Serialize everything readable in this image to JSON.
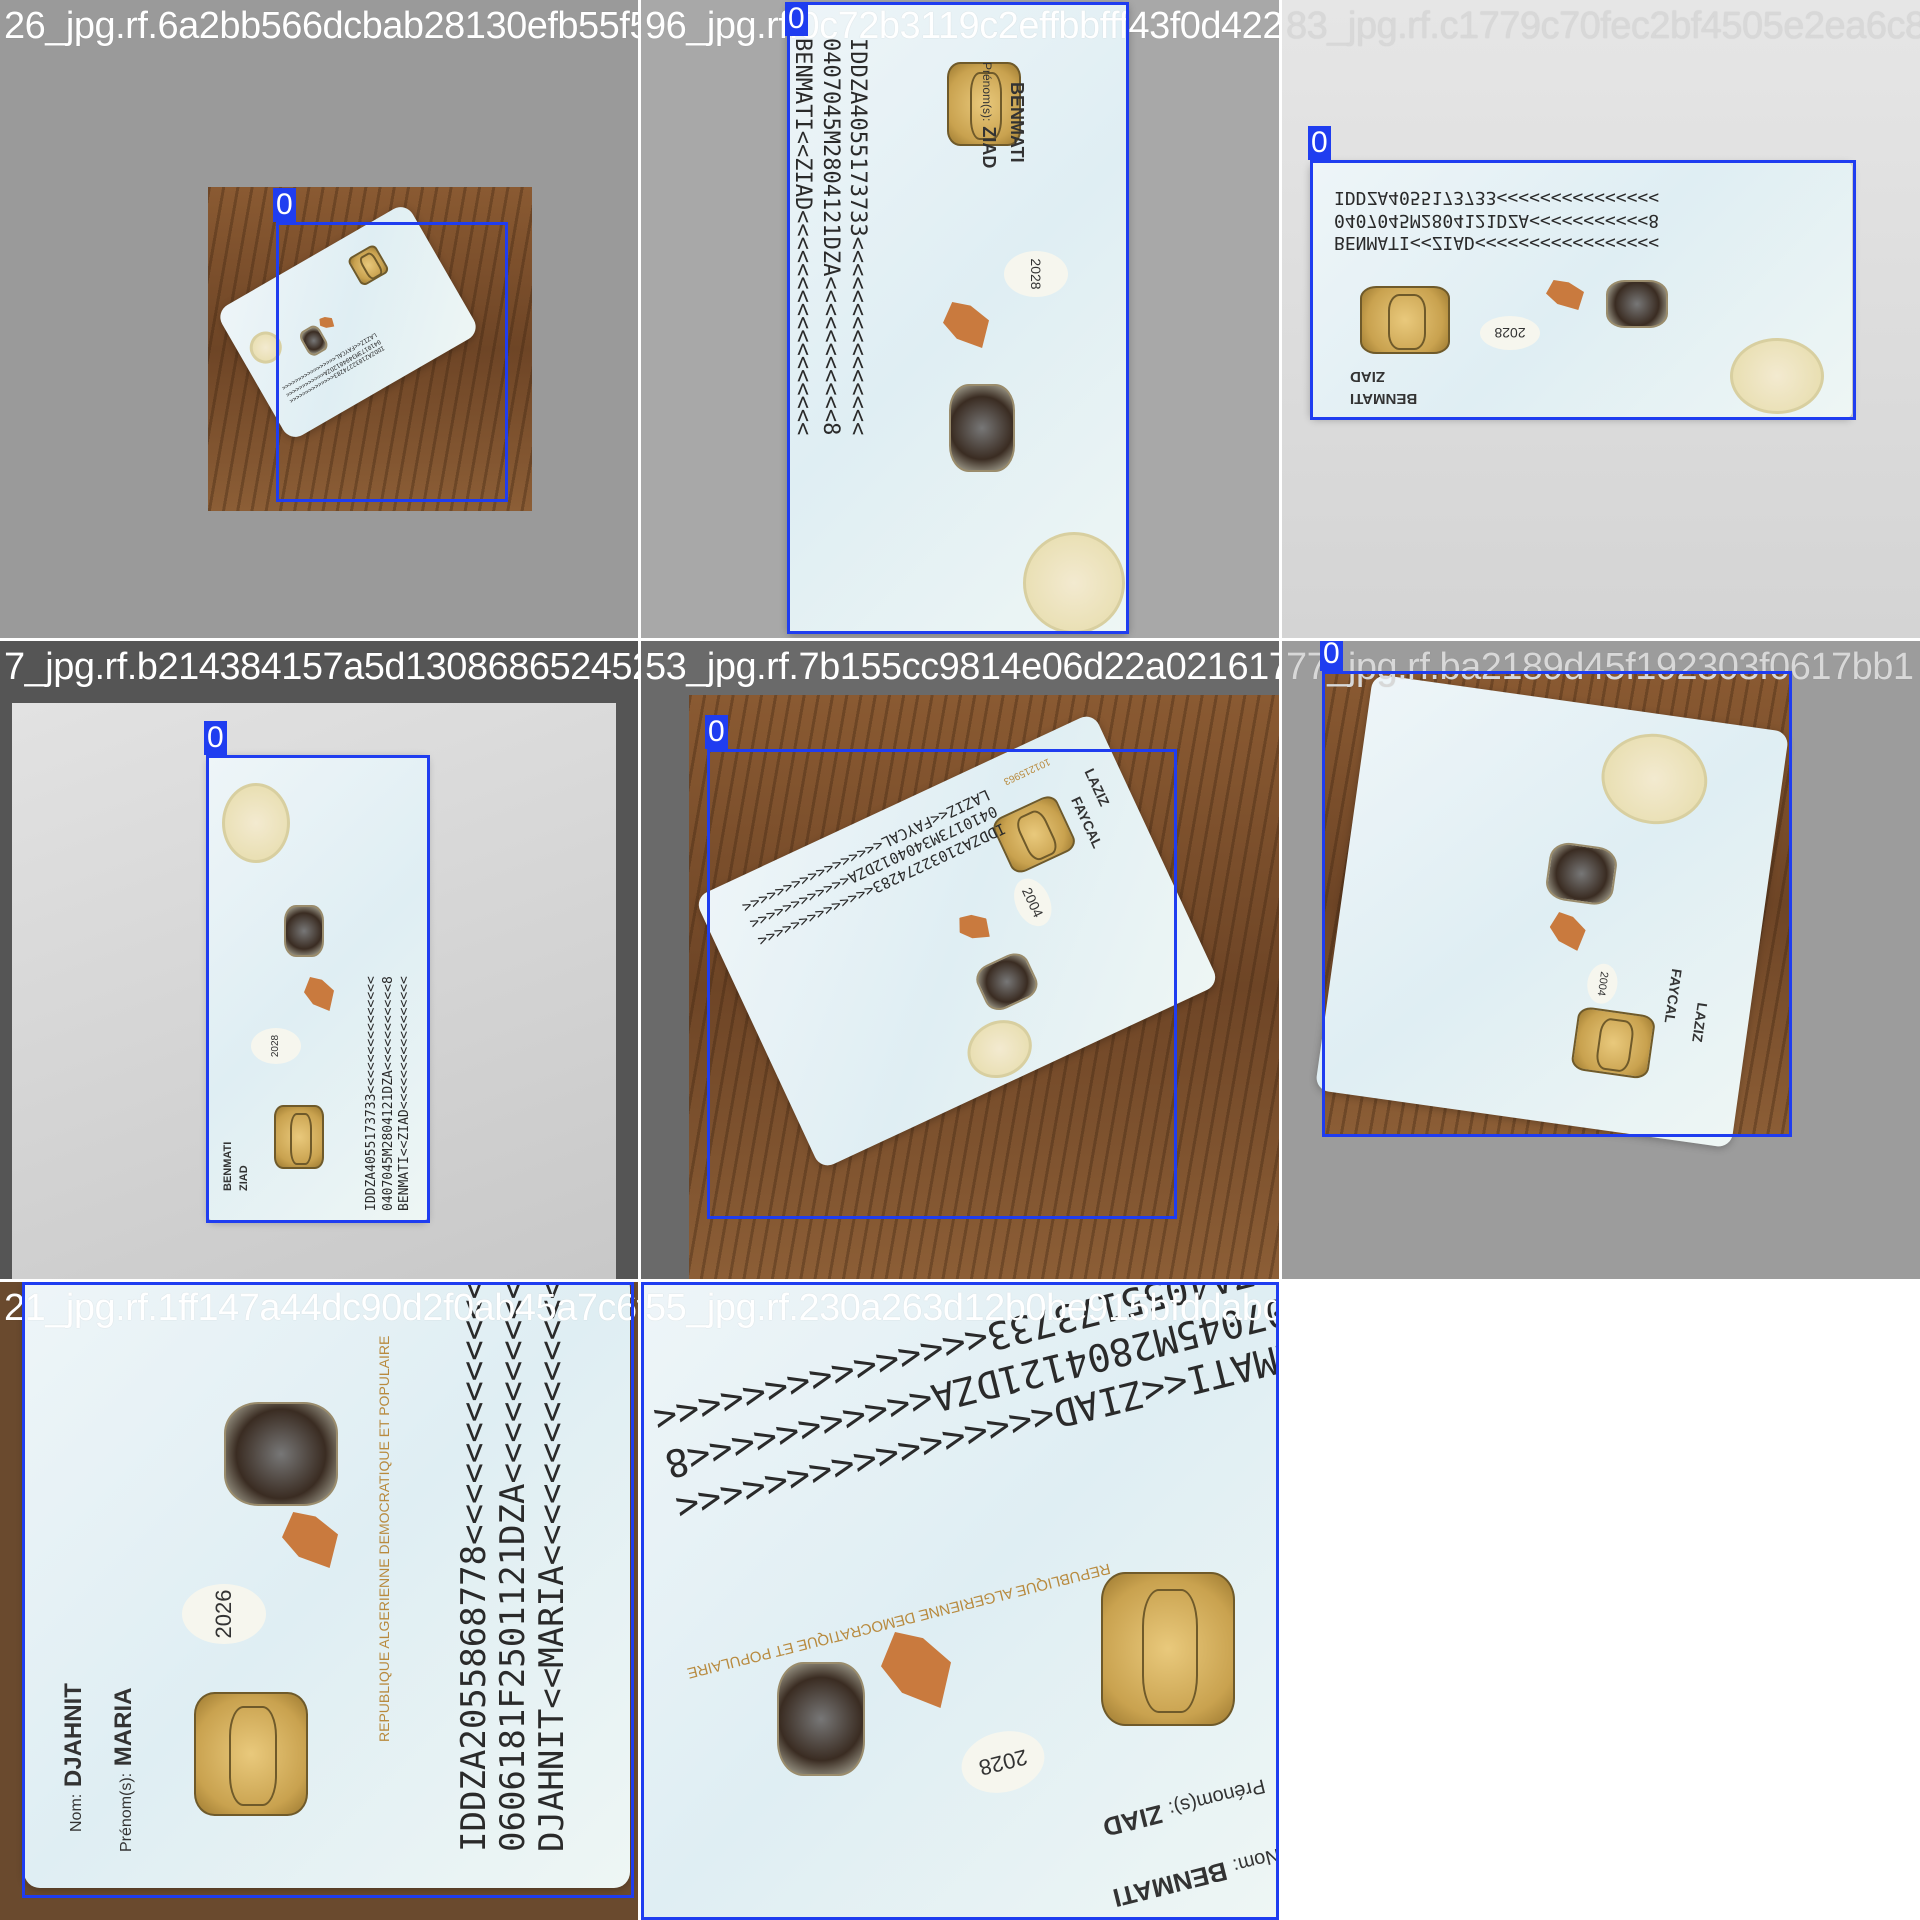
{
  "tiles": [
    {
      "filename": "26_jpg.rf.6a2bb566dcbab28130efb55f56380ad",
      "label": "0"
    },
    {
      "filename": "96_jpg.rf.0c72b3119c2effbbfff43f0d42203",
      "label": "0"
    },
    {
      "filename": "83_jpg.rf.c1779c70fec2bf4505e2ea6c8",
      "label": "0"
    },
    {
      "filename": "7_jpg.rf.b214384157a5d1308686524527",
      "label": "0"
    },
    {
      "filename": "53_jpg.rf.7b155cc9814e06d22a021617",
      "label": "0"
    },
    {
      "filename": "77_jpg.rf.ba2189d45f192303f0617bb1",
      "label": "0"
    },
    {
      "filename": "21_jpg.rf.1ff147a44dc90d2f0ab45a7c6f6",
      "label": "0"
    },
    {
      "filename": "55_jpg.rf.230a263d12b0be915bfddabd4617d3",
      "label": "0"
    }
  ],
  "cards": {
    "benmati": {
      "nom_label": "Nom:",
      "nom": "BENMATI",
      "prenom_label": "Prénom(s):",
      "prenom": "ZIAD",
      "year": "2028",
      "mrz1": "IDDZA4055173733<<<<<<<<<<<<<<<",
      "mrz2": "0407045M2804121DZA<<<<<<<<<<<8",
      "mrz3": "BENMATI<<ZIAD<<<<<<<<<<<<<<<<<",
      "republic": "REPUBLIQUE ALGERIENNE DEMOCRATIQUE ET POPULAIRE"
    },
    "laziz": {
      "nom_label": "Nom:",
      "nom": "LAZIZ",
      "prenom_label": "Prénom(s):",
      "prenom": "FAYCAL",
      "year": "2004",
      "card_number": "101215963",
      "mrz1": "IDDZA21032274283<<<<<<<<<<<<<<",
      "mrz2": "0410173M3404012DZA<<<<<<<<<<<<",
      "mrz3": "LAZIZ<<FAYCAL<<<<<<<<<<<<<<<<<"
    },
    "djahnit": {
      "nom_label": "Nom:",
      "nom": "DJAHNIT",
      "prenom_label": "Prénom(s):",
      "prenom": "MARIA",
      "year": "2026",
      "mrz1": "IDDZA2055868778<<<<<<<<<<<<<<<",
      "mrz2": "0606181F2501121DZA<<<<<<<<<<<<",
      "mrz3": "DJAHNIT<<MARIA<<<<<<<<<<<<<<<<",
      "republic": "REPUBLIQUE ALGERIENNE DEMOCRATIQUE ET POPULAIRE"
    }
  },
  "colors": {
    "bbox": "#1f3df0",
    "filename_text": "#ffffff"
  }
}
